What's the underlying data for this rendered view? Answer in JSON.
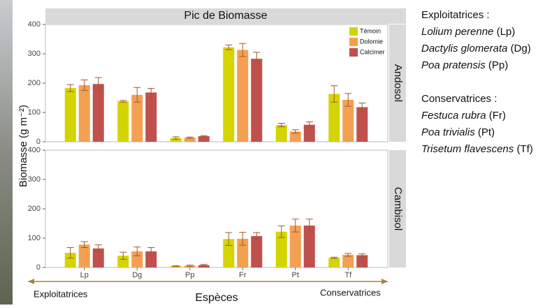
{
  "chart_data": {
    "type": "bar",
    "title": "Pic de Biomasse",
    "y_label": "Biomasse (g m⁻²)",
    "x_label": "Espèces",
    "x_annotations": [
      "Exploitatrices",
      "Conservatrices"
    ],
    "categories": [
      "Lp",
      "Dg",
      "Pp",
      "Fr",
      "Pt",
      "Tf"
    ],
    "series": [
      {
        "name": "Témoin",
        "color": "#d4d400"
      },
      {
        "name": "Dolomie",
        "color": "#f3a052"
      },
      {
        "name": "Calcimer",
        "color": "#c0504d"
      }
    ],
    "ylim": [
      0,
      400
    ],
    "yticks": [
      0,
      100,
      200,
      300,
      400
    ],
    "facets": [
      {
        "label": "Andosol",
        "values": [
          [
            183,
            138,
            13,
            322,
            57,
            163
          ],
          [
            193,
            160,
            14,
            313,
            35,
            143
          ],
          [
            197,
            168,
            19,
            283,
            58,
            118
          ]
        ],
        "errors": [
          [
            12,
            3,
            4,
            8,
            6,
            28
          ],
          [
            18,
            25,
            2,
            22,
            6,
            22
          ],
          [
            22,
            14,
            2,
            22,
            10,
            14
          ]
        ]
      },
      {
        "label": "Cambisol",
        "values": [
          [
            50,
            40,
            5,
            97,
            122,
            33
          ],
          [
            78,
            55,
            6,
            98,
            143,
            43
          ],
          [
            65,
            55,
            8,
            107,
            143,
            42
          ]
        ],
        "errors": [
          [
            18,
            12,
            1,
            22,
            20,
            2
          ],
          [
            10,
            15,
            2,
            22,
            22,
            5
          ],
          [
            12,
            13,
            2,
            12,
            22,
            5
          ]
        ]
      }
    ]
  },
  "species_key": [
    {
      "heading": "Exploitatrices :",
      "species": [
        [
          "Lolium perenne",
          "(Lp)"
        ],
        [
          "Dactylis glomerata",
          "(Dg)"
        ],
        [
          "Poa pratensis",
          "(Pp)"
        ]
      ]
    },
    {
      "heading": "Conservatrices :",
      "species": [
        [
          "Festuca rubra",
          "(Fr)"
        ],
        [
          "Poa trivialis",
          "(Pt)"
        ],
        [
          "Trisetum flavescens",
          "(Tf)"
        ]
      ]
    }
  ]
}
